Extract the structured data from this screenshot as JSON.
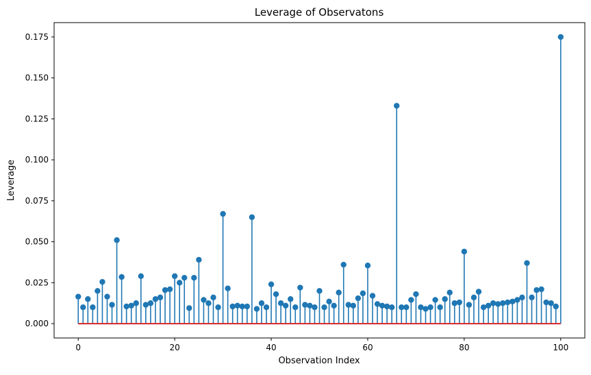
{
  "chart_data": {
    "type": "stem",
    "title": "Leverage of Observatons",
    "xlabel": "Observation Index",
    "ylabel": "Leverage",
    "x": [
      0,
      1,
      2,
      3,
      4,
      5,
      6,
      7,
      8,
      9,
      10,
      11,
      12,
      13,
      14,
      15,
      16,
      17,
      18,
      19,
      20,
      21,
      22,
      23,
      24,
      25,
      26,
      27,
      28,
      29,
      30,
      31,
      32,
      33,
      34,
      35,
      36,
      37,
      38,
      39,
      40,
      41,
      42,
      43,
      44,
      45,
      46,
      47,
      48,
      49,
      50,
      51,
      52,
      53,
      54,
      55,
      56,
      57,
      58,
      59,
      60,
      61,
      62,
      63,
      64,
      65,
      66,
      67,
      68,
      69,
      70,
      71,
      72,
      73,
      74,
      75,
      76,
      77,
      78,
      79,
      80,
      81,
      82,
      83,
      84,
      85,
      86,
      87,
      88,
      89,
      90,
      91,
      92,
      93,
      94,
      95,
      96,
      97,
      98,
      99,
      100
    ],
    "values": [
      0.0165,
      0.01,
      0.015,
      0.01,
      0.02,
      0.0255,
      0.0165,
      0.0115,
      0.051,
      0.0285,
      0.0105,
      0.011,
      0.0125,
      0.029,
      0.0115,
      0.0125,
      0.015,
      0.016,
      0.0205,
      0.021,
      0.029,
      0.025,
      0.028,
      0.0095,
      0.028,
      0.039,
      0.0145,
      0.0125,
      0.016,
      0.01,
      0.067,
      0.0215,
      0.0105,
      0.011,
      0.0105,
      0.0105,
      0.065,
      0.009,
      0.0125,
      0.01,
      0.024,
      0.018,
      0.0125,
      0.011,
      0.015,
      0.01,
      0.022,
      0.0115,
      0.011,
      0.01,
      0.02,
      0.01,
      0.0135,
      0.011,
      0.019,
      0.036,
      0.0115,
      0.011,
      0.0155,
      0.0185,
      0.0355,
      0.017,
      0.012,
      0.011,
      0.0105,
      0.01,
      0.133,
      0.01,
      0.01,
      0.0145,
      0.018,
      0.01,
      0.009,
      0.01,
      0.0145,
      0.01,
      0.015,
      0.019,
      0.0125,
      0.013,
      0.044,
      0.0115,
      0.016,
      0.0195,
      0.01,
      0.011,
      0.0125,
      0.012,
      0.0125,
      0.013,
      0.0135,
      0.0145,
      0.016,
      0.037,
      0.016,
      0.0205,
      0.021,
      0.013,
      0.0125,
      0.0105,
      0.175
    ],
    "xlim": [
      -5,
      105
    ],
    "ylim": [
      -0.00875,
      0.18375
    ],
    "xticks": [
      0,
      20,
      40,
      60,
      80,
      100
    ],
    "ytick_values": [
      0.0,
      0.025,
      0.05,
      0.075,
      0.1,
      0.125,
      0.15,
      0.175
    ],
    "ytick_labels": [
      "0.000",
      "0.025",
      "0.050",
      "0.075",
      "0.100",
      "0.125",
      "0.150",
      "0.175"
    ],
    "grid": false,
    "legend": null,
    "colors": {
      "stem": "#1f77b4",
      "marker": "#1f77b4",
      "baseline": "#d62728",
      "spine": "#000000",
      "background": "#ffffff"
    }
  }
}
